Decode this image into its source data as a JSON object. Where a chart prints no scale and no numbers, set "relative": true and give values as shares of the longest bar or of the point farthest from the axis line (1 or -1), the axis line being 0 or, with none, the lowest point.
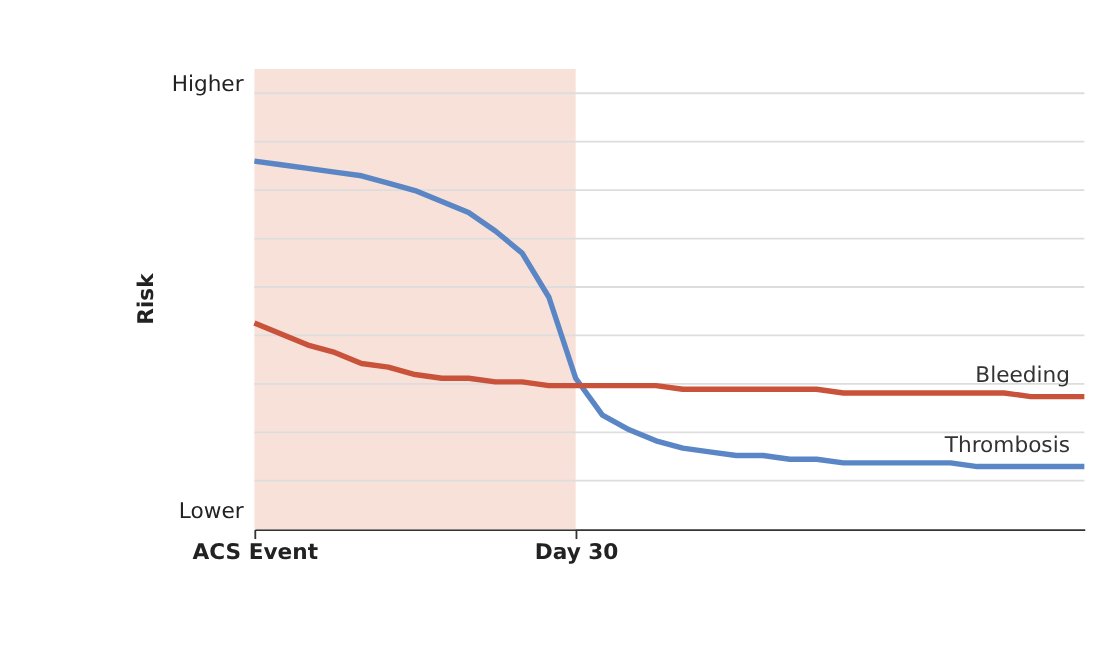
{
  "chart_data": {
    "type": "line",
    "relative": true,
    "ylabel": "Risk",
    "categories": [
      "ACS Event",
      null,
      null,
      null,
      null,
      null,
      null,
      null,
      null,
      null,
      null,
      null,
      "Day 30",
      null,
      null,
      null,
      null,
      null,
      null,
      null,
      null,
      null,
      null,
      null,
      null,
      null,
      null,
      null,
      null,
      null,
      null,
      null
    ],
    "annotations": [
      "Higher",
      "Lower"
    ],
    "bands": [
      {
        "axis": "x",
        "from": "ACS Event",
        "to": "Day 30",
        "color": "#f8e1d9"
      }
    ],
    "grid": "y",
    "marker": "none",
    "line_style": "solid",
    "series": [
      {
        "name": "Thrombosis",
        "color": "#5b86c5",
        "values": [
          1,
          0.99,
          0.98,
          0.97,
          0.96,
          0.94,
          0.92,
          0.89,
          0.86,
          0.81,
          0.75,
          0.63,
          0.41,
          0.31,
          0.27,
          0.24,
          0.22,
          0.21,
          0.2,
          0.2,
          0.19,
          0.19,
          0.18,
          0.18,
          0.18,
          0.18,
          0.18,
          0.17,
          0.17,
          0.17,
          0.17,
          0.17
        ]
      },
      {
        "name": "Bleeding",
        "color": "#c9533a",
        "values": [
          0.56,
          0.53,
          0.5,
          0.48,
          0.45,
          0.44,
          0.42,
          0.41,
          0.41,
          0.4,
          0.4,
          0.39,
          0.39,
          0.39,
          0.39,
          0.39,
          0.38,
          0.38,
          0.38,
          0.38,
          0.38,
          0.38,
          0.37,
          0.37,
          0.37,
          0.37,
          0.37,
          0.37,
          0.37,
          0.36,
          0.36,
          0.36
        ]
      }
    ]
  }
}
